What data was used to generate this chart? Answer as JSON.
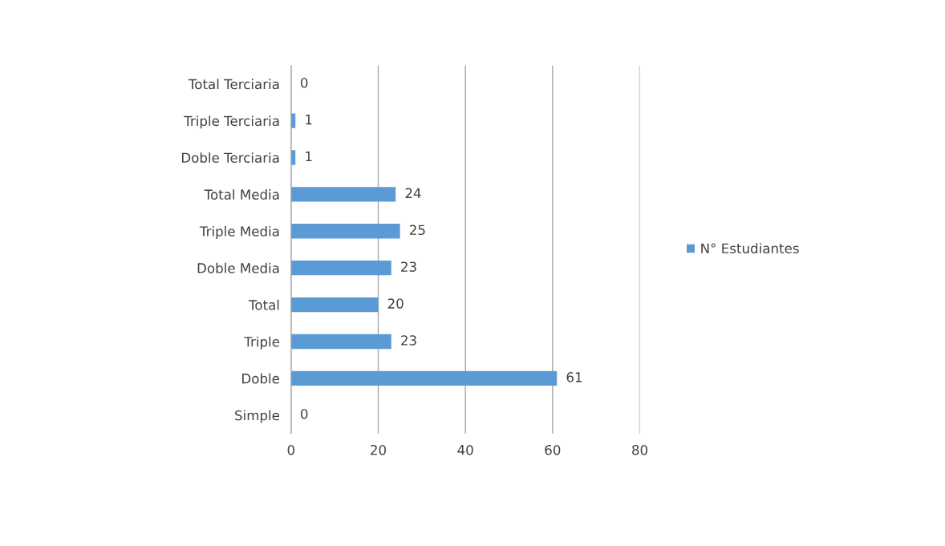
{
  "chart_data": {
    "type": "bar",
    "orientation": "horizontal",
    "categories": [
      "Total Terciaria",
      "Triple Terciaria",
      "Doble Terciaria",
      "Total Media",
      "Triple Media",
      "Doble Media",
      "Total",
      "Triple",
      "Doble",
      "Simple"
    ],
    "series": [
      {
        "name": "N° Estudiantes",
        "color": "#5b9bd5",
        "values": [
          0,
          1,
          1,
          24,
          25,
          23,
          20,
          23,
          61,
          0
        ]
      }
    ],
    "xlim": [
      0,
      80
    ],
    "xticks": [
      0,
      20,
      40,
      60,
      80
    ],
    "grid": "x",
    "legend": "right",
    "data_labels": true
  }
}
